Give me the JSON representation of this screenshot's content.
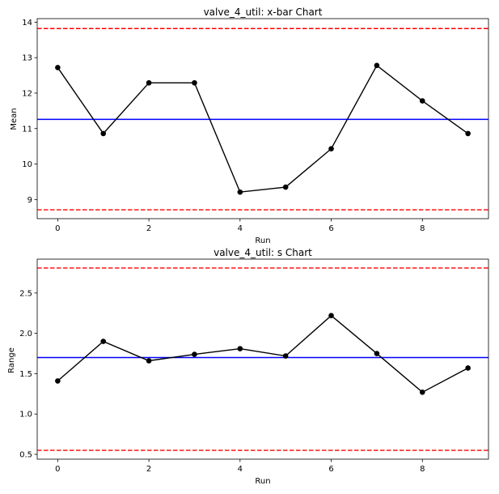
{
  "chart_data": [
    {
      "type": "line",
      "title": "valve_4_util: x-bar Chart",
      "xlabel": "Run",
      "ylabel": "Mean",
      "x": [
        0,
        1,
        2,
        3,
        4,
        5,
        6,
        7,
        8,
        9
      ],
      "values": [
        12.72,
        10.86,
        12.29,
        12.29,
        9.21,
        9.35,
        10.43,
        12.78,
        11.78,
        10.86
      ],
      "center_line": 11.26,
      "ucl": 13.82,
      "lcl": 8.71,
      "xlim": [
        -0.45,
        9.45
      ],
      "ylim": [
        8.46,
        14.1
      ],
      "xticks": [
        0,
        2,
        4,
        6,
        8
      ],
      "yticks": [
        9,
        10,
        11,
        12,
        13,
        14
      ],
      "grid": false,
      "colors": {
        "series": "#000000",
        "center": "#0000ff",
        "limits": "#ff0000"
      }
    },
    {
      "type": "line",
      "title": "valve_4_util: s Chart",
      "xlabel": "Run",
      "ylabel": "Range",
      "x": [
        0,
        1,
        2,
        3,
        4,
        5,
        6,
        7,
        8,
        9
      ],
      "values": [
        1.41,
        1.9,
        1.66,
        1.74,
        1.81,
        1.72,
        2.22,
        1.75,
        1.27,
        1.57
      ],
      "center_line": 1.7,
      "ucl": 2.81,
      "lcl": 0.55,
      "xlim": [
        -0.45,
        9.45
      ],
      "ylim": [
        0.44,
        2.92
      ],
      "xticks": [
        0,
        2,
        4,
        6,
        8
      ],
      "yticks": [
        0.5,
        1.0,
        1.5,
        2.0,
        2.5
      ],
      "yticklabels": [
        "0.5",
        "1.0",
        "1.5",
        "2.0",
        "2.5"
      ],
      "grid": false,
      "colors": {
        "series": "#000000",
        "center": "#0000ff",
        "limits": "#ff0000"
      }
    }
  ]
}
